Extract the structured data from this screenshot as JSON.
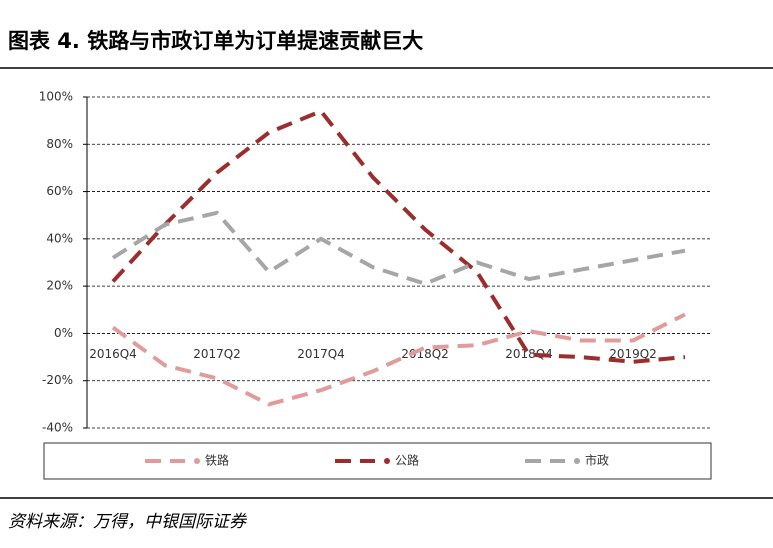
{
  "chart_data": {
    "type": "line",
    "title": "图表 4. 铁路与市政订单为订单提速贡献巨大",
    "source": "资料来源：万得，中银国际证券",
    "categories": [
      "2016Q4",
      null,
      "2017Q2",
      null,
      "2017Q4",
      null,
      "2018Q2",
      null,
      "2018Q4",
      null,
      "2019Q2",
      null
    ],
    "series": [
      {
        "name": "铁路",
        "color": "#e09c9c",
        "values": [
          2.5,
          -13.5,
          -19,
          -30,
          -24,
          -16,
          -6,
          -5,
          1,
          -3,
          -3,
          8
        ]
      },
      {
        "name": "公路",
        "color": "#9b2d2d",
        "values": [
          22,
          46,
          68,
          85,
          94,
          66,
          44,
          26,
          -9,
          -10,
          -12,
          -10
        ]
      },
      {
        "name": "市政",
        "color": "#a6a6a6",
        "values": [
          32,
          46,
          51,
          26,
          40,
          28,
          21,
          30,
          23,
          27,
          31,
          35
        ]
      }
    ],
    "ylim": [
      -40,
      100
    ],
    "yticks": [
      {
        "value": -40,
        "label": "-40%"
      },
      {
        "value": -20,
        "label": "-20%"
      },
      {
        "value": 0,
        "label": "0%"
      },
      {
        "value": 20,
        "label": "20%"
      },
      {
        "value": 40,
        "label": "40%"
      },
      {
        "value": 60,
        "label": "60%"
      },
      {
        "value": 80,
        "label": "80%"
      },
      {
        "value": 100,
        "label": "100%"
      }
    ],
    "grid": true,
    "legend": "bottom"
  }
}
